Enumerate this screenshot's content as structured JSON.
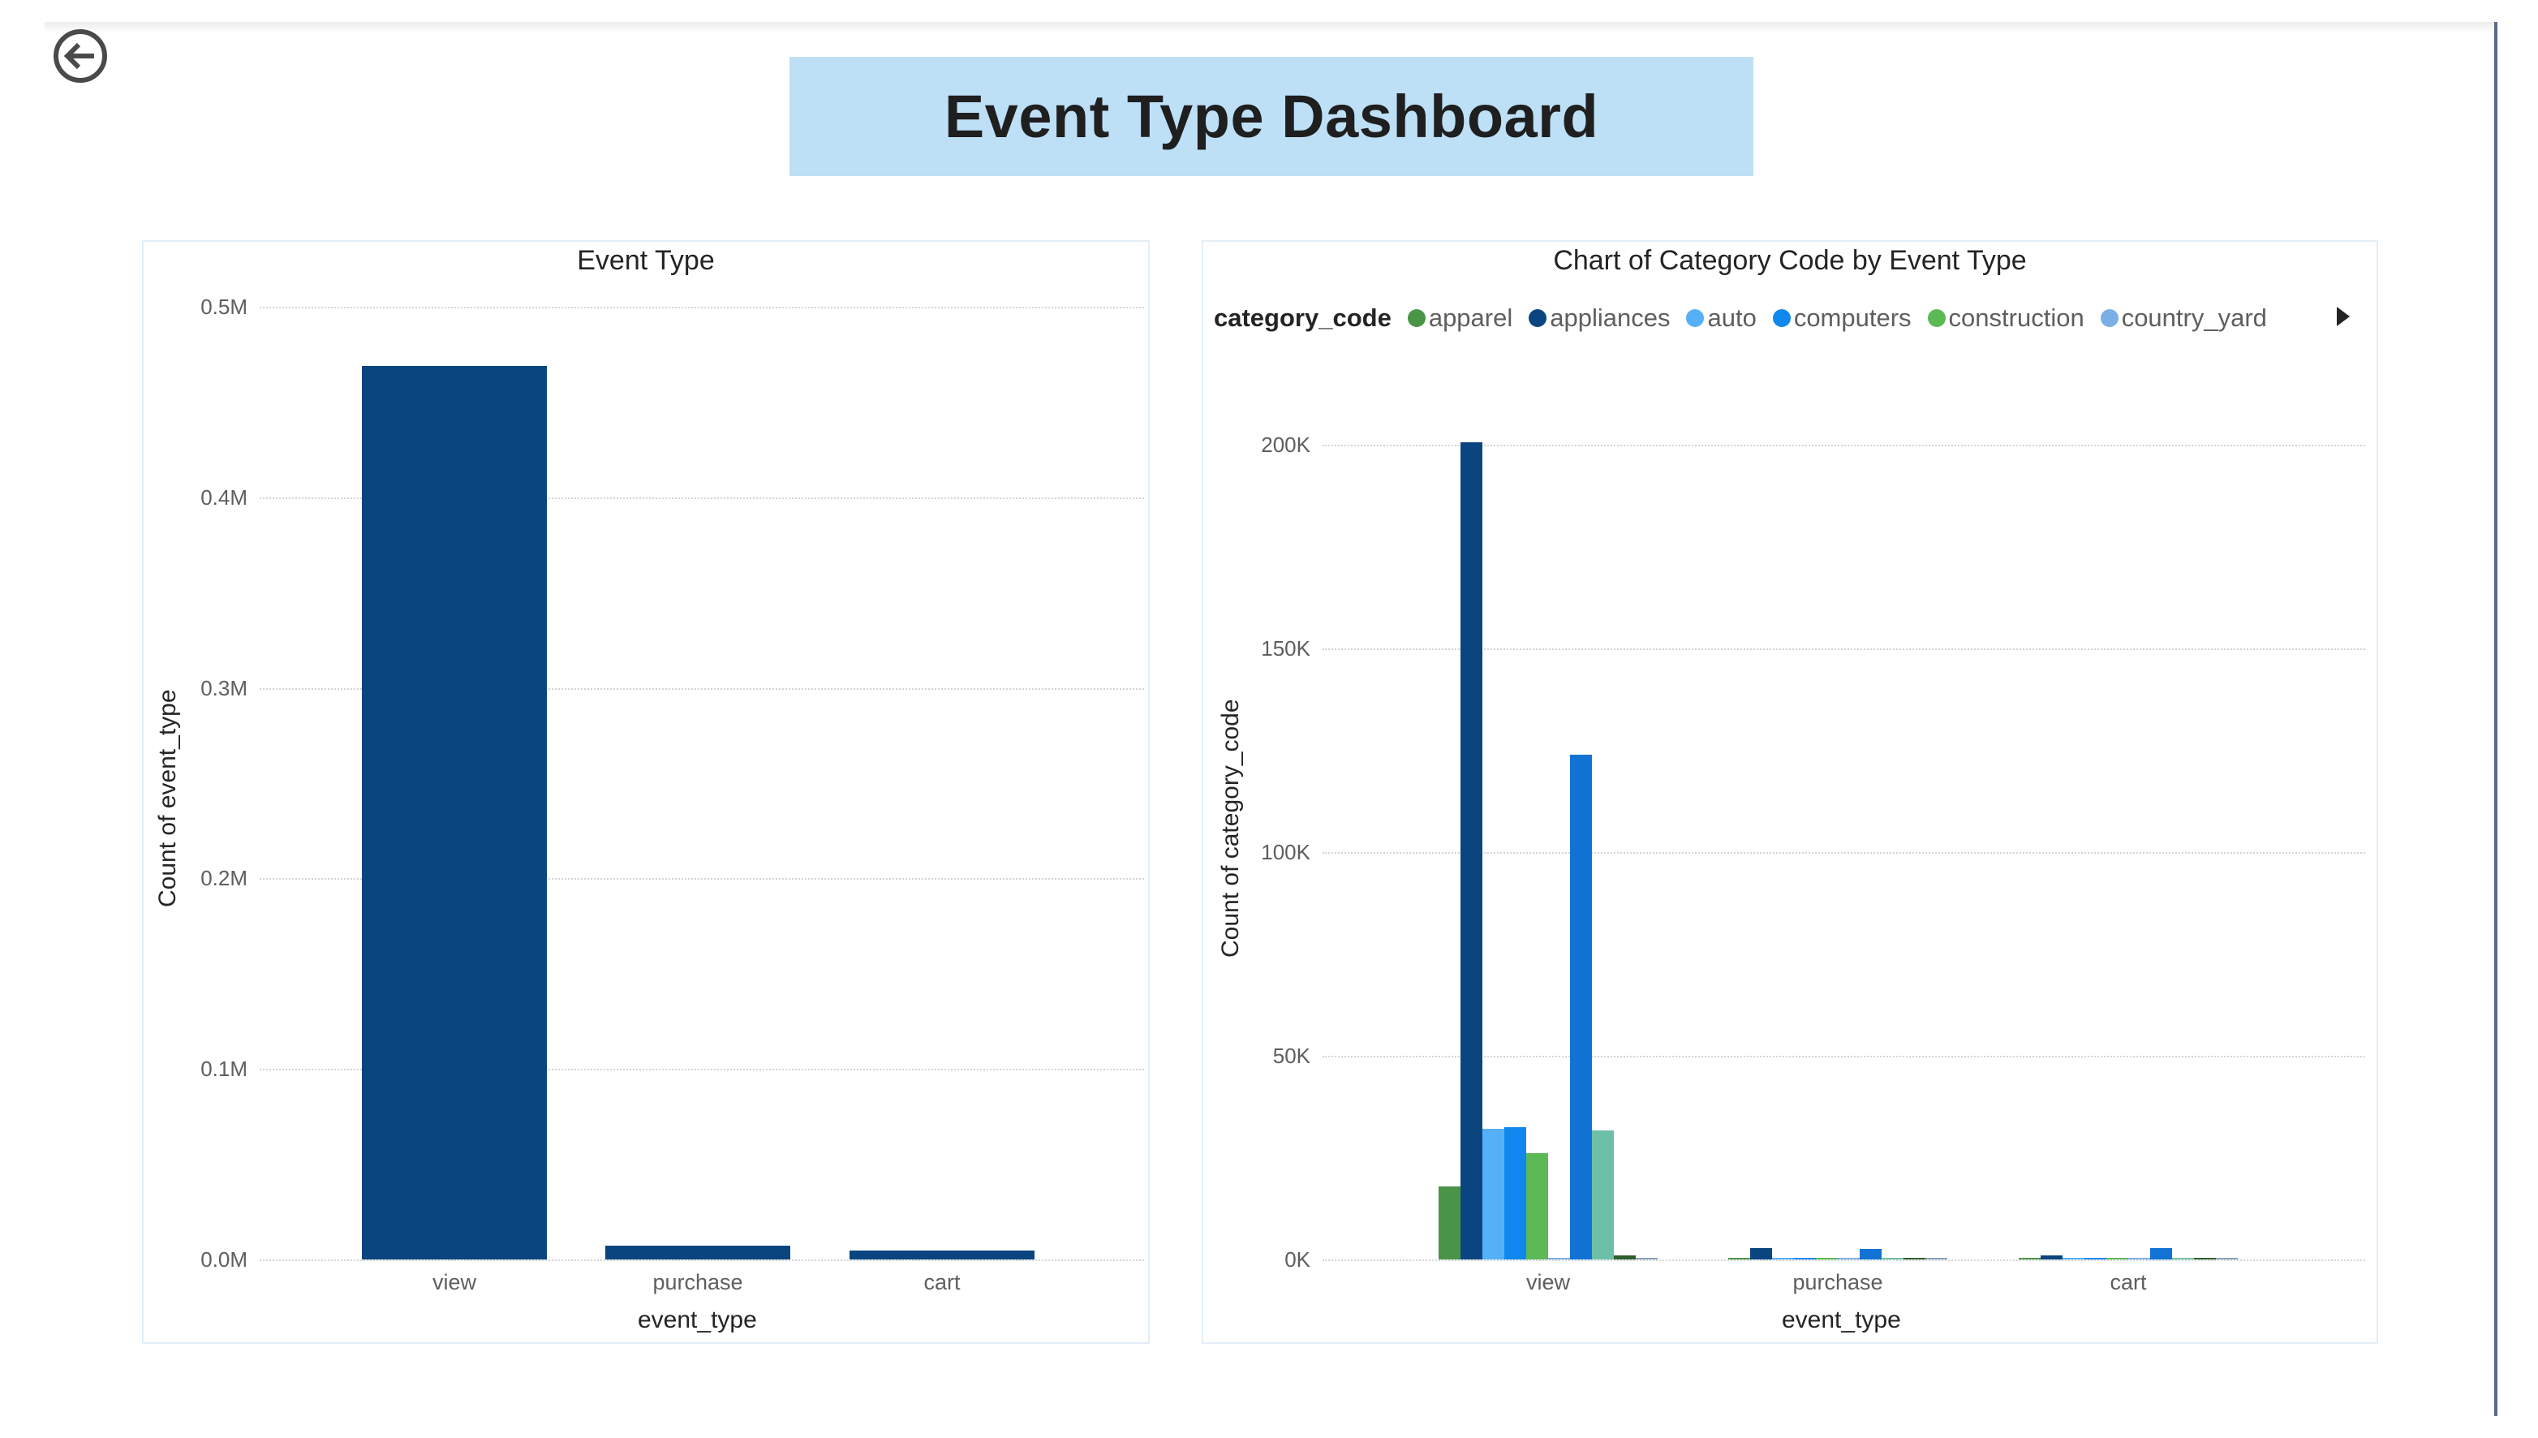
{
  "page": {
    "title": "Event Type Dashboard",
    "back_icon": "back-arrow-circle-icon",
    "title_bg": "#bde0f7"
  },
  "left_chart": {
    "title": "Event Type",
    "xlabel": "event_type",
    "ylabel": "Count of event_type",
    "yticks": [
      "0.0M",
      "0.1M",
      "0.2M",
      "0.3M",
      "0.4M",
      "0.5M"
    ],
    "categories": [
      "view",
      "purchase",
      "cart"
    ],
    "bar_color": "#0b4580"
  },
  "right_chart": {
    "title": "Chart of Category Code by Event Type",
    "xlabel": "event_type",
    "ylabel": "Count of category_code",
    "yticks": [
      "0K",
      "50K",
      "100K",
      "150K",
      "200K"
    ],
    "categories": [
      "view",
      "purchase",
      "cart"
    ],
    "legend": {
      "title": "category_code",
      "items": [
        {
          "label": "apparel",
          "color": "#4a9448"
        },
        {
          "label": "appliances",
          "color": "#0b4580"
        },
        {
          "label": "auto",
          "color": "#55b0f8"
        },
        {
          "label": "computers",
          "color": "#0f87ee"
        },
        {
          "label": "construction",
          "color": "#5bb956"
        },
        {
          "label": "country_yard",
          "color": "#7aaee6"
        }
      ],
      "more_icon": "legend-next-arrow-icon"
    }
  },
  "chart_data": [
    {
      "type": "bar",
      "title": "Event Type",
      "xlabel": "event_type",
      "ylabel": "Count of event_type",
      "categories": [
        "view",
        "purchase",
        "cart"
      ],
      "values": [
        469000,
        7200,
        4500
      ],
      "ylim": [
        0,
        500000
      ],
      "yticks": [
        "0.0M",
        "0.1M",
        "0.2M",
        "0.3M",
        "0.4M",
        "0.5M"
      ],
      "grid": true,
      "color": "#0b4580"
    },
    {
      "type": "bar",
      "title": "Chart of Category Code by Event Type",
      "xlabel": "event_type",
      "ylabel": "Count of category_code",
      "categories": [
        "view",
        "purchase",
        "cart"
      ],
      "ylim": [
        0,
        200000
      ],
      "yticks": [
        "0K",
        "50K",
        "100K",
        "150K",
        "200K"
      ],
      "grid": true,
      "legend_position": "top",
      "series": [
        {
          "name": "apparel",
          "color": "#4a9448",
          "values": [
            18000,
            300,
            300
          ]
        },
        {
          "name": "appliances",
          "color": "#0b4580",
          "values": [
            200500,
            2800,
            1000
          ]
        },
        {
          "name": "auto",
          "color": "#55b0f8",
          "values": [
            32000,
            200,
            200
          ]
        },
        {
          "name": "computers",
          "color": "#0f87ee",
          "values": [
            32500,
            400,
            400
          ]
        },
        {
          "name": "construction",
          "color": "#5bb956",
          "values": [
            26000,
            300,
            300
          ]
        },
        {
          "name": "country_yard",
          "color": "#7aaee6",
          "values": [
            300,
            100,
            100
          ]
        },
        {
          "name": null,
          "color": "#1173d4",
          "values": [
            124000,
            2500,
            2800
          ]
        },
        {
          "name": null,
          "color": "#6cc0a8",
          "values": [
            31700,
            200,
            200
          ]
        },
        {
          "name": null,
          "color": "#2e5e2e",
          "values": [
            1000,
            300,
            300
          ]
        },
        {
          "name": null,
          "color": "#8aa0b8",
          "values": [
            300,
            200,
            200
          ]
        }
      ]
    }
  ]
}
